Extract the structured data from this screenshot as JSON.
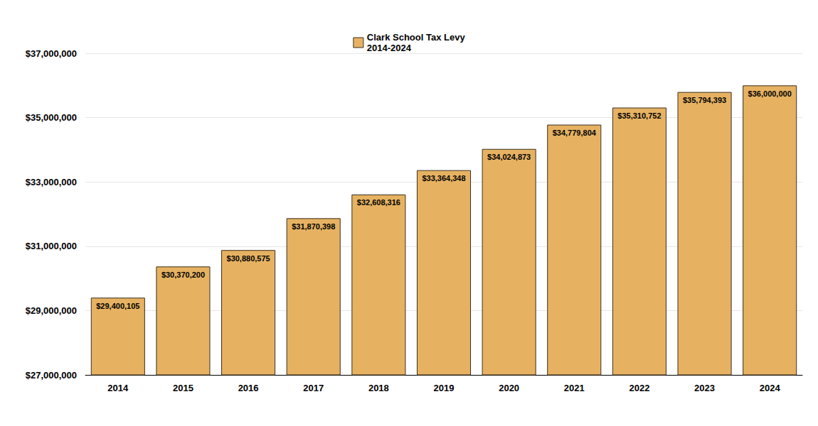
{
  "chart_data": {
    "type": "bar",
    "categories": [
      "2014",
      "2015",
      "2016",
      "2017",
      "2018",
      "2019",
      "2020",
      "2021",
      "2022",
      "2023",
      "2024"
    ],
    "series": [
      {
        "name": "Clark School Tax Levy\n2014-2024",
        "color": "#e6b262",
        "values": [
          29400105,
          30370200,
          30880575,
          31870398,
          32608316,
          33364348,
          34024873,
          34779804,
          35310752,
          35794393,
          36000000
        ],
        "value_labels": [
          "$29,400,105",
          "$30,370,200",
          "$30,880,575",
          "$31,870,398",
          "$32,608,316",
          "$33,364,348",
          "$34,024,873",
          "$34,779,804",
          "$35,310,752",
          "$35,794,393",
          "$36,000,000"
        ]
      }
    ],
    "ylim": [
      27000000,
      37000000
    ],
    "yticks": [
      {
        "value": 27000000,
        "label": "$27,000,000"
      },
      {
        "value": 29000000,
        "label": "$29,000,000"
      },
      {
        "value": 31000000,
        "label": "$31,000,000"
      },
      {
        "value": 33000000,
        "label": "$33,000,000"
      },
      {
        "value": 35000000,
        "label": "$35,000,000"
      },
      {
        "value": 37000000,
        "label": "$37,000,000"
      }
    ],
    "grid": true,
    "legend": "top",
    "data_labels": true
  }
}
